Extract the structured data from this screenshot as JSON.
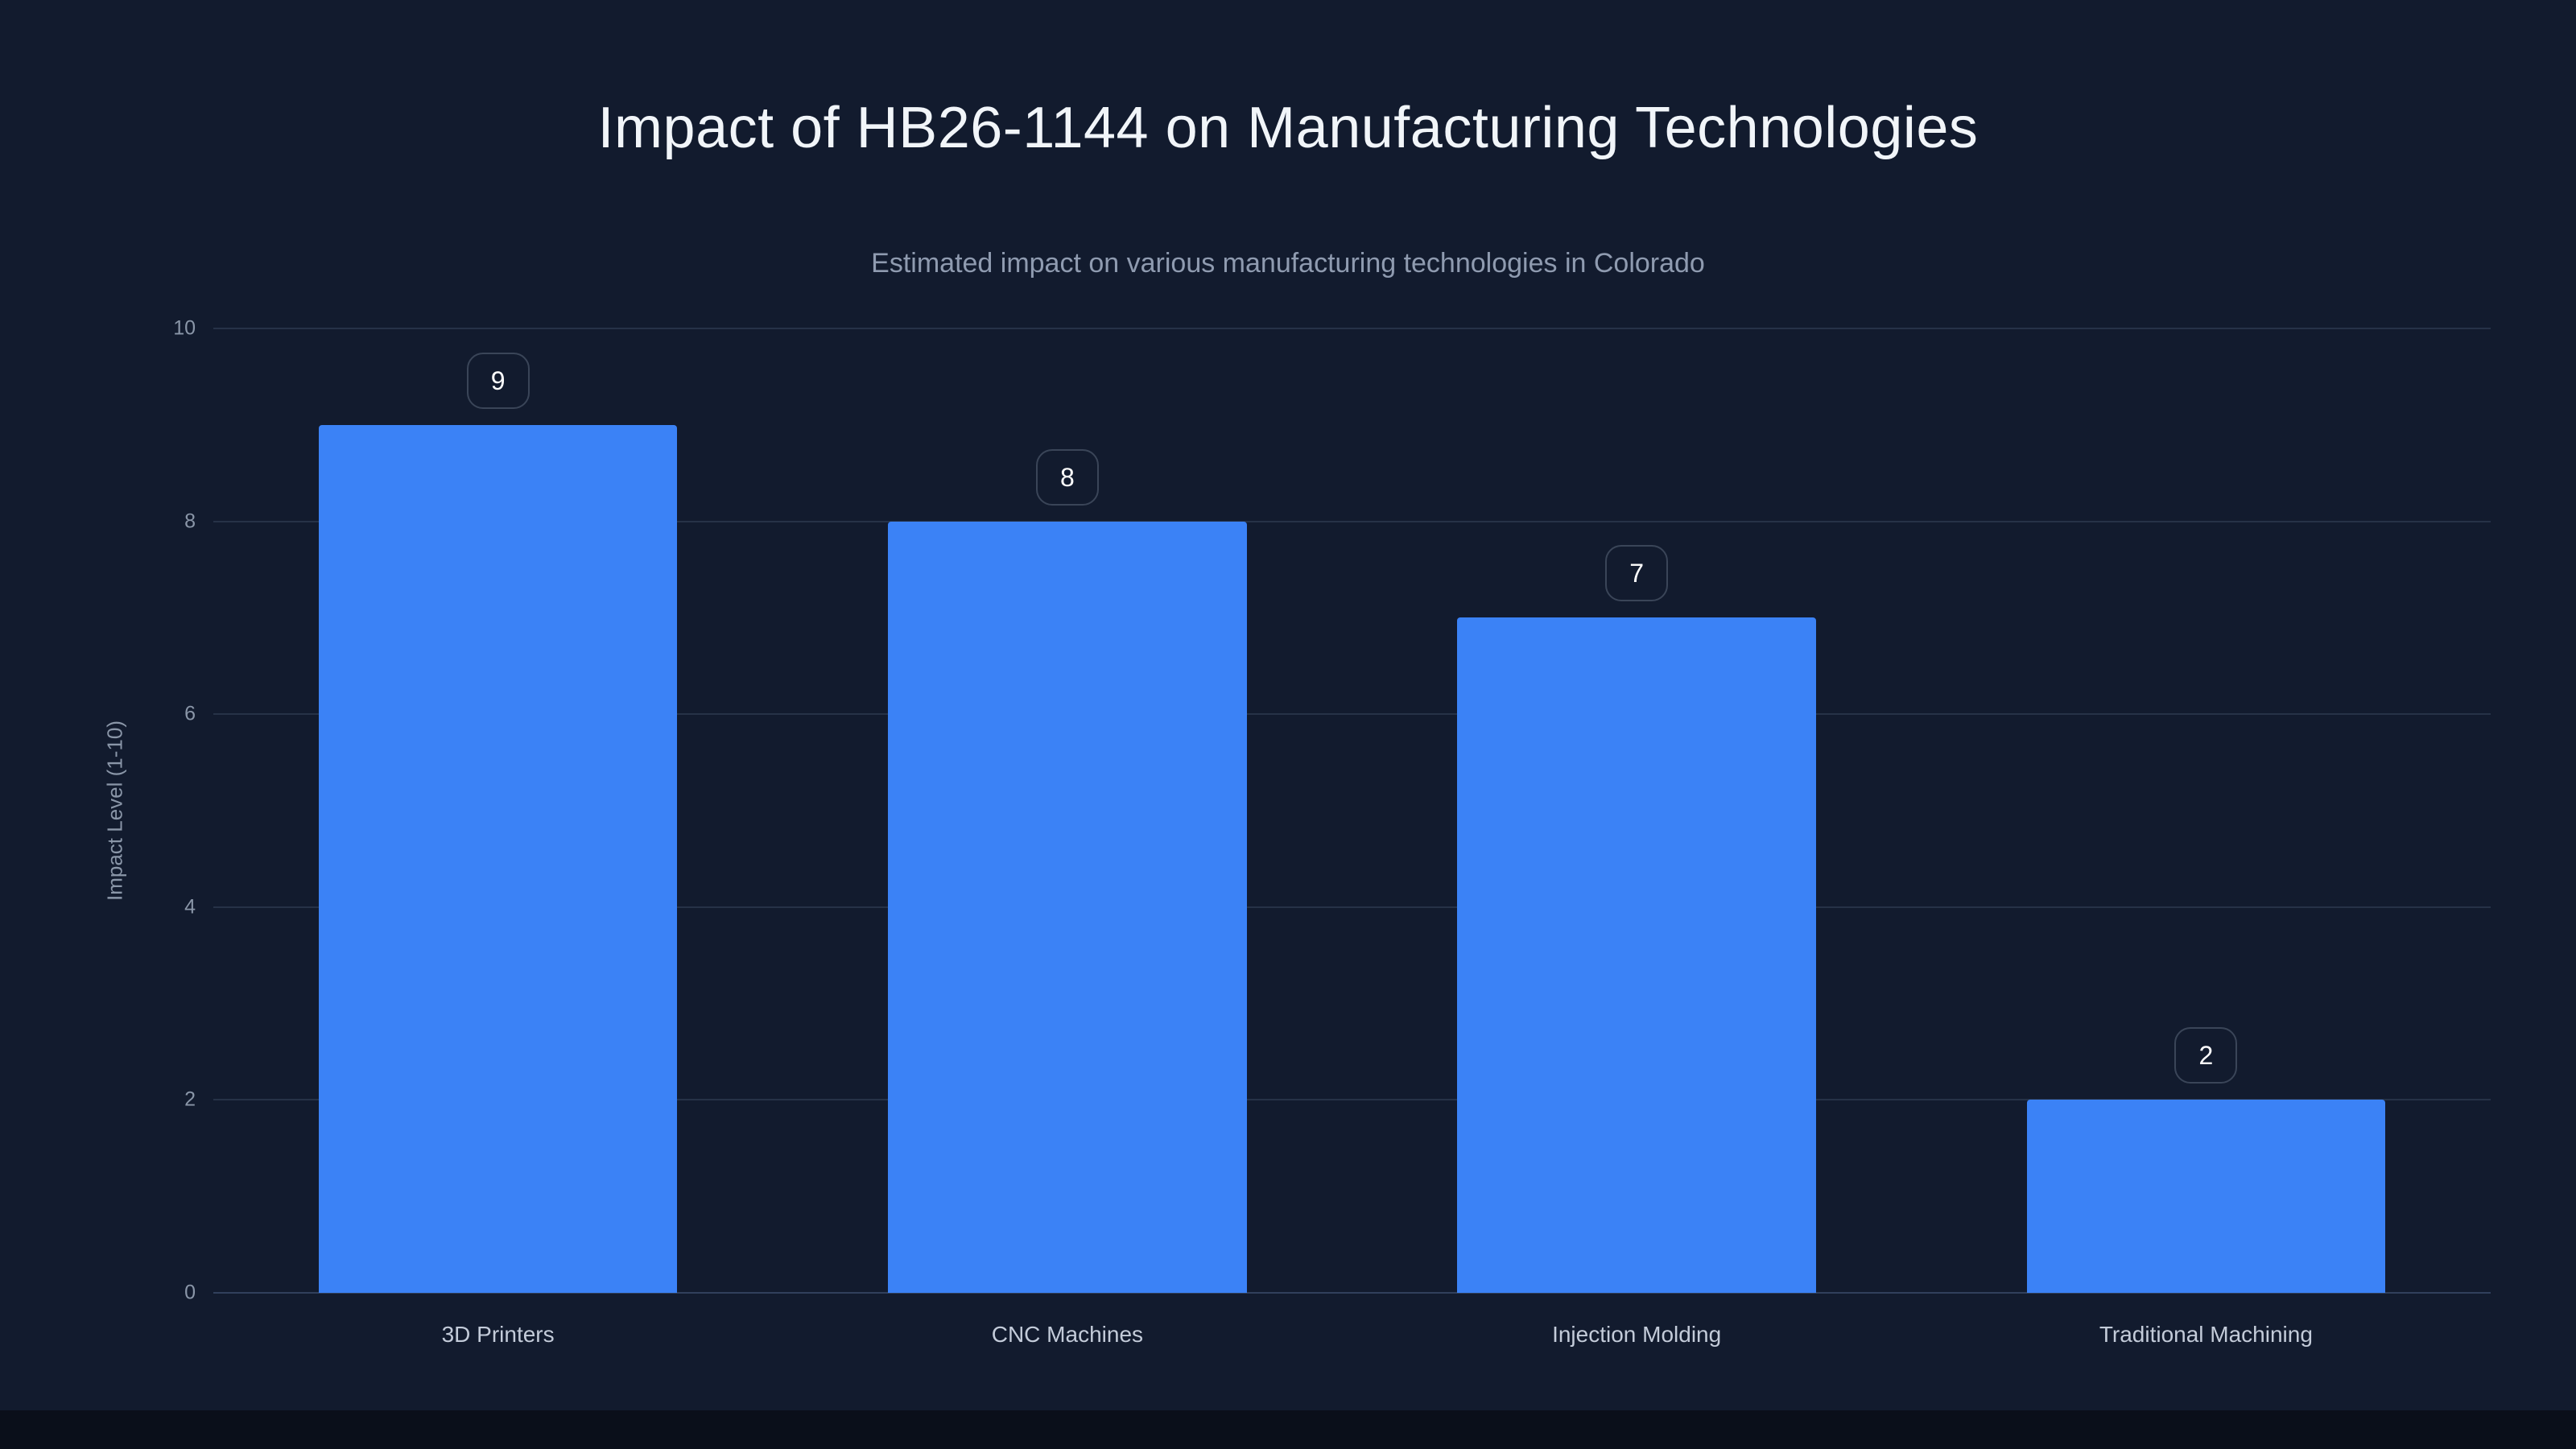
{
  "title": "Impact of HB26-1144 on Manufacturing Technologies",
  "subtitle": "Estimated impact on various manufacturing technologies in Colorado",
  "chart_data": {
    "type": "bar",
    "categories": [
      "3D Printers",
      "CNC Machines",
      "Injection Molding",
      "Traditional Machining"
    ],
    "values": [
      9,
      8,
      7,
      2
    ],
    "value_labels": [
      "9",
      "8",
      "7",
      "2"
    ],
    "title": "Impact of HB26-1144 on Manufacturing Technologies",
    "subtitle": "Estimated impact on various manufacturing technologies in Colorado",
    "xlabel": "",
    "ylabel": "Impact Level (1-10)",
    "ylim": [
      0,
      10
    ],
    "yticks": [
      0,
      2,
      4,
      6,
      8,
      10
    ],
    "grid": true,
    "legend": false
  },
  "colors": {
    "background": "#121B2E",
    "footer": "#0A0F1A",
    "bar": "#3B82F6",
    "grid": "#263247",
    "baseline": "#31405C",
    "title_text": "#F1F5F9",
    "subtitle_text": "#8F9BB0",
    "tick_text": "#8A96A8",
    "category_text": "#C3CBD9",
    "value_label_text": "#FFFFFF",
    "value_label_border": "#3A4558"
  }
}
